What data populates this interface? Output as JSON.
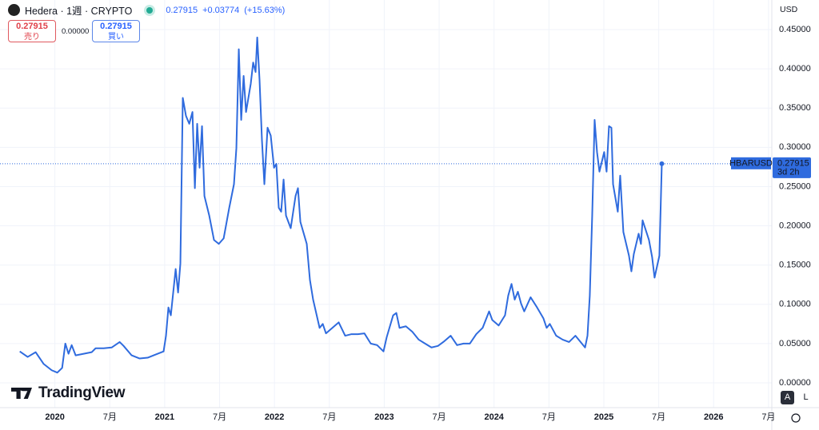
{
  "ui": {
    "symbol": "Hedera · 1週 · CRYPTO",
    "last": "0.27915",
    "change": "+0.03774",
    "change_pct": "(+15.63%)",
    "sell_price": "0.27915",
    "sell_label": "売り",
    "spread": "0.00000",
    "buy_price": "0.27915",
    "buy_label": "買い",
    "currency": "USD",
    "ticker": "HBARUSD",
    "price_tag": "0.27915",
    "countdown": "3d 2h",
    "brand": "TradingView",
    "auto": "A",
    "log": "L"
  },
  "chart_data": {
    "type": "line",
    "color": "#2f6bde",
    "grid": true,
    "x": [
      2019.68,
      2019.752,
      2019.825,
      2019.898,
      2019.971,
      2020.022,
      2020.066,
      2020.095,
      2020.124,
      2020.153,
      2020.189,
      2020.262,
      2020.335,
      2020.371,
      2020.444,
      2020.517,
      2020.59,
      2020.626,
      2020.699,
      2020.772,
      2020.845,
      2020.918,
      2020.99,
      2021.012,
      2021.034,
      2021.056,
      2021.1,
      2021.122,
      2021.143,
      2021.165,
      2021.194,
      2021.224,
      2021.253,
      2021.275,
      2021.296,
      2021.318,
      2021.34,
      2021.362,
      2021.406,
      2021.449,
      2021.493,
      2021.537,
      2021.588,
      2021.631,
      2021.653,
      2021.675,
      2021.697,
      2021.719,
      2021.741,
      2021.784,
      2021.806,
      2021.828,
      2021.843,
      2021.864,
      2021.886,
      2021.908,
      2021.937,
      2021.966,
      2021.996,
      2022.017,
      2022.039,
      2022.061,
      2022.083,
      2022.105,
      2022.148,
      2022.192,
      2022.214,
      2022.236,
      2022.294,
      2022.323,
      2022.352,
      2022.411,
      2022.44,
      2022.469,
      2022.527,
      2022.585,
      2022.644,
      2022.702,
      2022.76,
      2022.819,
      2022.877,
      2022.935,
      2022.993,
      2023.022,
      2023.081,
      2023.11,
      2023.139,
      2023.197,
      2023.256,
      2023.314,
      2023.372,
      2023.43,
      2023.489,
      2023.547,
      2023.605,
      2023.663,
      2023.722,
      2023.78,
      2023.838,
      2023.896,
      2023.955,
      2023.984,
      2024.042,
      2024.1,
      2024.129,
      2024.159,
      2024.188,
      2024.217,
      2024.246,
      2024.275,
      2024.333,
      2024.392,
      2024.45,
      2024.479,
      2024.508,
      2024.566,
      2024.625,
      2024.683,
      2024.741,
      2024.8,
      2024.829,
      2024.851,
      2024.872,
      2024.894,
      2024.916,
      2024.938,
      2024.96,
      2025.003,
      2025.025,
      2025.047,
      2025.069,
      2025.084,
      2025.127,
      2025.149,
      2025.178,
      2025.229,
      2025.251,
      2025.273,
      2025.317,
      2025.338,
      2025.353,
      2025.411,
      2025.44,
      2025.462,
      2025.506,
      2025.528
    ],
    "values": [
      0.04,
      0.033,
      0.039,
      0.024,
      0.016,
      0.013,
      0.019,
      0.05,
      0.037,
      0.048,
      0.035,
      0.037,
      0.039,
      0.044,
      0.044,
      0.045,
      0.052,
      0.047,
      0.035,
      0.031,
      0.032,
      0.036,
      0.04,
      0.06,
      0.096,
      0.086,
      0.145,
      0.115,
      0.152,
      0.363,
      0.34,
      0.33,
      0.345,
      0.248,
      0.33,
      0.274,
      0.327,
      0.238,
      0.213,
      0.182,
      0.177,
      0.184,
      0.223,
      0.253,
      0.299,
      0.425,
      0.335,
      0.391,
      0.345,
      0.381,
      0.408,
      0.396,
      0.44,
      0.386,
      0.309,
      0.253,
      0.325,
      0.315,
      0.274,
      0.279,
      0.223,
      0.218,
      0.259,
      0.213,
      0.197,
      0.238,
      0.248,
      0.205,
      0.177,
      0.131,
      0.106,
      0.07,
      0.075,
      0.063,
      0.07,
      0.077,
      0.06,
      0.062,
      0.062,
      0.063,
      0.05,
      0.048,
      0.04,
      0.058,
      0.086,
      0.089,
      0.07,
      0.072,
      0.065,
      0.055,
      0.05,
      0.045,
      0.047,
      0.053,
      0.06,
      0.048,
      0.05,
      0.05,
      0.062,
      0.07,
      0.091,
      0.08,
      0.073,
      0.086,
      0.111,
      0.126,
      0.106,
      0.116,
      0.101,
      0.091,
      0.109,
      0.096,
      0.082,
      0.07,
      0.075,
      0.06,
      0.055,
      0.052,
      0.06,
      0.05,
      0.045,
      0.06,
      0.111,
      0.213,
      0.335,
      0.294,
      0.269,
      0.294,
      0.269,
      0.327,
      0.325,
      0.253,
      0.218,
      0.264,
      0.192,
      0.162,
      0.142,
      0.164,
      0.19,
      0.177,
      0.207,
      0.182,
      0.16,
      0.134,
      0.162,
      0.27915
    ],
    "xlim": [
      2019.5,
      2026.53
    ],
    "ylim": [
      -0.0316,
      0.4877
    ],
    "xticks": [
      {
        "value": 2020,
        "label": "2020"
      },
      {
        "value": 2020.5,
        "label": "7月"
      },
      {
        "value": 2021,
        "label": "2021"
      },
      {
        "value": 2021.5,
        "label": "7月"
      },
      {
        "value": 2022,
        "label": "2022"
      },
      {
        "value": 2022.5,
        "label": "7月"
      },
      {
        "value": 2023,
        "label": "2023"
      },
      {
        "value": 2023.5,
        "label": "7月"
      },
      {
        "value": 2024,
        "label": "2024"
      },
      {
        "value": 2024.5,
        "label": "7月"
      },
      {
        "value": 2025,
        "label": "2025"
      },
      {
        "value": 2025.5,
        "label": "7月"
      },
      {
        "value": 2026,
        "label": "2026"
      },
      {
        "value": 2026.5,
        "label": "7月"
      }
    ],
    "yticks": [
      {
        "value": 0,
        "label": "0.00000"
      },
      {
        "value": 0.05,
        "label": "0.05000"
      },
      {
        "value": 0.1,
        "label": "0.10000"
      },
      {
        "value": 0.15,
        "label": "0.15000"
      },
      {
        "value": 0.2,
        "label": "0.20000"
      },
      {
        "value": 0.25,
        "label": "0.25000"
      },
      {
        "value": 0.3,
        "label": "0.30000"
      },
      {
        "value": 0.35,
        "label": "0.35000"
      },
      {
        "value": 0.4,
        "label": "0.40000"
      },
      {
        "value": 0.45,
        "label": "0.45000"
      }
    ]
  }
}
